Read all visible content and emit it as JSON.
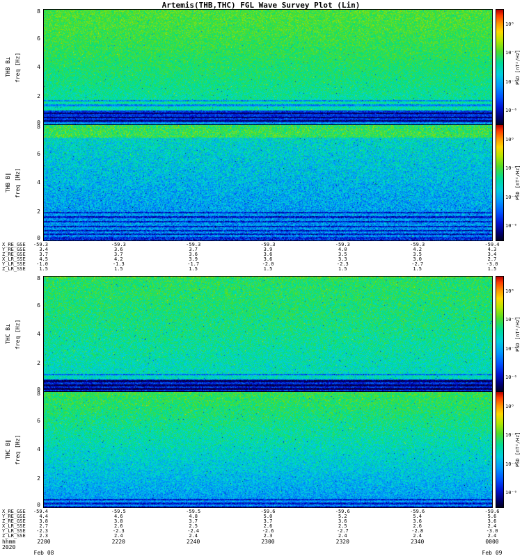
{
  "title": "Artemis(THB,THC) FGL Wave Survey Plot (Lin)",
  "chart_data": [
    {
      "type": "heatmap",
      "title": "THB B⊥",
      "ylabel": "freq [Hz]",
      "ylim": [
        0,
        8
      ],
      "yticks": [
        0,
        2,
        4,
        6,
        8
      ],
      "x_time_ticks": [
        "2200",
        "2220",
        "2240",
        "2300",
        "2320",
        "2340",
        "0000"
      ],
      "colorbar": {
        "label": "PSD [nT²/Hz]",
        "scale": "log",
        "ticks": [
          "10⁰",
          "10⁻²",
          "10⁻⁴",
          "10⁻⁶"
        ]
      },
      "description": "Perpendicular magnetic wave power, THEMIS-B: green (high PSD ~10⁻¹) above ~3 Hz grading to cyan below, dark-blue low-PSD band under ~1 Hz with narrow dark spectral lines",
      "render": {
        "seed": 101,
        "top_t": 0.6,
        "bottom_t": 0.45,
        "curve": 1.4,
        "noise": 0.085,
        "bands": [
          {
            "y0": 0.875,
            "y1": 0.98,
            "t": 0.22
          },
          {
            "y0": 0.98,
            "y1": 1.0,
            "t": 0.34
          }
        ],
        "lines": [
          0.79,
          0.83,
          0.9,
          0.935,
          0.965
        ]
      }
    },
    {
      "type": "heatmap",
      "title": "THB B∥",
      "ylabel": "freq [Hz]",
      "ylim": [
        0,
        8
      ],
      "yticks": [
        0,
        2,
        4,
        6,
        8
      ],
      "x_time_ticks": [
        "2200",
        "2220",
        "2240",
        "2300",
        "2320",
        "2340",
        "0000"
      ],
      "colorbar": {
        "label": "PSD [nT²/Hz]",
        "scale": "log",
        "ticks": [
          "10⁰",
          "10⁻²",
          "10⁻⁴",
          "10⁻⁶"
        ]
      },
      "description": "Parallel magnetic wave power, THEMIS-B: narrow green band at 7-8 Hz, speckled cyan-on-blue background below, several dark horizontal harmonic lines at low frequency",
      "render": {
        "seed": 202,
        "top_t": 0.47,
        "bottom_t": 0.31,
        "curve": 1.0,
        "noise": 0.12,
        "bands": [
          {
            "y0": 0.0,
            "y1": 0.105,
            "t": 0.57
          },
          {
            "y0": 0.975,
            "y1": 1.0,
            "t": 0.2
          }
        ],
        "lines": [
          0.76,
          0.8,
          0.84,
          0.88,
          0.92,
          0.95
        ]
      }
    },
    {
      "type": "heatmap",
      "title": "THC B⊥",
      "ylabel": "freq [Hz]",
      "ylim": [
        0,
        8
      ],
      "yticks": [
        0,
        2,
        4,
        6,
        8
      ],
      "x_time_ticks": [
        "2200",
        "2220",
        "2240",
        "2300",
        "2320",
        "2340",
        "0000"
      ],
      "colorbar": {
        "label": "PSD [nT²/Hz]",
        "scale": "log",
        "ticks": [
          "10⁰",
          "10⁻²",
          "10⁻⁴",
          "10⁻⁶"
        ]
      },
      "description": "Perpendicular magnetic wave power, THEMIS-C: fairly uniform cyan-green turbulence, strong dark-blue band below ~1 Hz containing fine dark line structure",
      "render": {
        "seed": 303,
        "top_t": 0.55,
        "bottom_t": 0.43,
        "curve": 1.6,
        "noise": 0.1,
        "bands": [
          {
            "y0": 0.0,
            "y1": 0.012,
            "t": 0.6
          },
          {
            "y0": 0.895,
            "y1": 1.0,
            "t": 0.21
          }
        ],
        "lines": [
          0.85,
          0.91,
          0.945,
          0.975
        ]
      }
    },
    {
      "type": "heatmap",
      "title": "THC B∥",
      "ylabel": "freq [Hz]",
      "ylim": [
        0,
        8
      ],
      "yticks": [
        0,
        2,
        4,
        6,
        8
      ],
      "x_time_ticks": [
        "2200",
        "2220",
        "2240",
        "2300",
        "2320",
        "2340",
        "0000"
      ],
      "colorbar": {
        "label": "PSD [nT²/Hz]",
        "scale": "log",
        "ticks": [
          "10⁰",
          "10⁻²",
          "10⁻⁴",
          "10⁻⁶"
        ]
      },
      "description": "Parallel magnetic wave power, THEMIS-C: green at 6-8 Hz fading smoothly through cyan to blue toward 0 Hz, thin dark lines at lowest frequencies",
      "render": {
        "seed": 404,
        "top_t": 0.57,
        "bottom_t": 0.33,
        "curve": 1.1,
        "noise": 0.1,
        "bands": [
          {
            "y0": 0.988,
            "y1": 1.0,
            "t": 0.2
          }
        ],
        "lines": [
          0.935,
          0.97
        ]
      }
    }
  ],
  "var_labels_upper": {
    "rows": [
      {
        "label": "X_RE_GSE",
        "values": [
          "-59.3",
          "-59.3",
          "-59.3",
          "-59.3",
          "-59.3",
          "-59.3",
          "-59.4"
        ]
      },
      {
        "label": "Y_RE_GSE",
        "values": [
          "3.4",
          "3.6",
          "3.7",
          "3.9",
          "4.0",
          "4.2",
          "4.3"
        ]
      },
      {
        "label": "Z_RE_GSE",
        "values": [
          "3.7",
          "3.7",
          "3.6",
          "3.6",
          "3.5",
          "3.5",
          "3.4"
        ]
      },
      {
        "label": "X_LR_SSE",
        "values": [
          "4.5",
          "4.2",
          "3.9",
          "3.6",
          "3.3",
          "3.0",
          "2.7"
        ]
      },
      {
        "label": "Y_LR_SSE",
        "values": [
          "-1.0",
          "-1.3",
          "-1.7",
          "-2.0",
          "-2.3",
          "-2.7",
          "-3.0"
        ]
      },
      {
        "label": "Z_LR_SSE",
        "values": [
          "1.5",
          "1.5",
          "1.5",
          "1.5",
          "1.5",
          "1.5",
          "1.5"
        ]
      }
    ]
  },
  "var_labels_lower": {
    "rows": [
      {
        "label": "X_RE_GSE",
        "values": [
          "-59.4",
          "-59.5",
          "-59.5",
          "-59.6",
          "-59.6",
          "-59.6",
          "-59.6"
        ]
      },
      {
        "label": "Y_RE_GSE",
        "values": [
          "4.4",
          "4.6",
          "4.8",
          "5.0",
          "5.2",
          "5.4",
          "5.6"
        ]
      },
      {
        "label": "Z_RE_GSE",
        "values": [
          "3.8",
          "3.8",
          "3.7",
          "3.7",
          "3.6",
          "3.6",
          "3.6"
        ]
      },
      {
        "label": "X_LR_SSE",
        "values": [
          "2.7",
          "2.6",
          "2.5",
          "2.6",
          "2.5",
          "2.6",
          "2.4"
        ]
      },
      {
        "label": "Y_LR_SSE",
        "values": [
          "-2.3",
          "-2.3",
          "-2.4",
          "-2.6",
          "-2.7",
          "-2.8",
          "-3.0"
        ]
      },
      {
        "label": "Z_LR_SSE",
        "values": [
          "2.3",
          "2.4",
          "2.4",
          "2.3",
          "2.4",
          "2.4",
          "2.4"
        ]
      }
    ]
  },
  "time_axis": {
    "label": "hhmm",
    "ticks": [
      "2200",
      "2220",
      "2240",
      "2300",
      "2320",
      "2340",
      "0000"
    ],
    "year": "2020",
    "date_start": "Feb 08",
    "date_end": "Feb 09"
  }
}
